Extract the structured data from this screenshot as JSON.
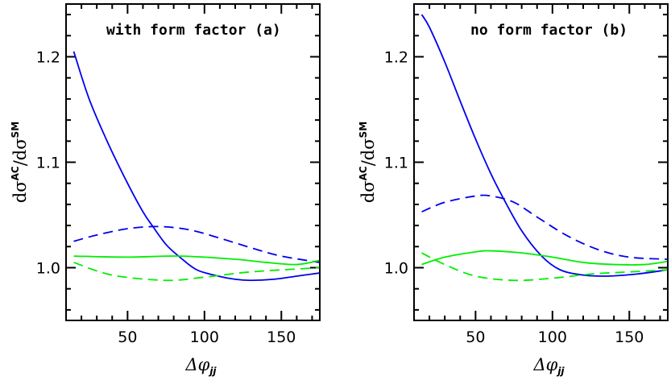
{
  "chart_data": [
    {
      "type": "line",
      "title": "with form factor (a)",
      "xlabel": "Δφ",
      "xlabel_sub": "jj",
      "ylabel": "dσ",
      "ylabel_sup1": "AC",
      "ylabel_mid": "/dσ",
      "ylabel_sup2": "SM",
      "xlim": [
        10,
        175
      ],
      "ylim": [
        0.95,
        1.25
      ],
      "xticks": [
        50,
        100,
        150
      ],
      "yticks": [
        1.0,
        1.1,
        1.2
      ],
      "xtick_labels": [
        "50",
        "100",
        "150"
      ],
      "ytick_labels": [
        "1.0",
        "1.1",
        "1.2"
      ],
      "grid": false,
      "series": [
        {
          "color": "#0000ee",
          "style": "solid",
          "x": [
            15,
            25,
            37,
            50,
            60,
            66,
            75,
            84,
            95,
            109,
            120,
            130,
            145,
            160,
            175
          ],
          "y": [
            1.205,
            1.16,
            1.119,
            1.08,
            1.053,
            1.04,
            1.022,
            1.01,
            0.998,
            0.992,
            0.989,
            0.988,
            0.989,
            0.992,
            0.995
          ]
        },
        {
          "color": "#0000ee",
          "style": "dashed",
          "x": [
            15,
            30,
            50,
            70,
            90,
            110,
            130,
            150,
            175
          ],
          "y": [
            1.025,
            1.031,
            1.037,
            1.039,
            1.036,
            1.028,
            1.019,
            1.011,
            1.005
          ]
        },
        {
          "color": "#00ee00",
          "style": "solid",
          "x": [
            15,
            50,
            85,
            120,
            140,
            160,
            175
          ],
          "y": [
            1.011,
            1.01,
            1.011,
            1.008,
            1.005,
            1.003,
            1.007
          ]
        },
        {
          "color": "#00ee00",
          "style": "dashed",
          "x": [
            15,
            40,
            75,
            100,
            130,
            175
          ],
          "y": [
            1.005,
            0.993,
            0.988,
            0.991,
            0.996,
            1.0
          ]
        }
      ]
    },
    {
      "type": "line",
      "title": "no form factor  (b)",
      "xlabel": "Δφ",
      "xlabel_sub": "jj",
      "ylabel": "dσ",
      "ylabel_sup1": "AC",
      "ylabel_mid": "/dσ",
      "ylabel_sup2": "SM",
      "xlim": [
        10,
        175
      ],
      "ylim": [
        0.95,
        1.25
      ],
      "xticks": [
        50,
        100,
        150
      ],
      "yticks": [
        1.0,
        1.1,
        1.2
      ],
      "xtick_labels": [
        "50",
        "100",
        "150"
      ],
      "ytick_labels": [
        "1.0",
        "1.1",
        "1.2"
      ],
      "grid": false,
      "series": [
        {
          "color": "#0000ee",
          "style": "solid",
          "x": [
            15,
            20,
            30,
            40,
            50,
            60,
            68,
            80,
            93,
            105,
            120,
            135,
            155,
            175
          ],
          "y": [
            1.24,
            1.228,
            1.195,
            1.158,
            1.122,
            1.089,
            1.066,
            1.035,
            1.011,
            0.998,
            0.993,
            0.992,
            0.994,
            0.998
          ]
        },
        {
          "color": "#0000ee",
          "style": "dashed",
          "x": [
            15,
            30,
            50,
            60,
            75,
            90,
            110,
            130,
            150,
            175
          ],
          "y": [
            1.053,
            1.062,
            1.068,
            1.068,
            1.062,
            1.048,
            1.03,
            1.017,
            1.01,
            1.008
          ]
        },
        {
          "color": "#00ee00",
          "style": "solid",
          "x": [
            15,
            30,
            50,
            60,
            80,
            100,
            120,
            140,
            160,
            175
          ],
          "y": [
            1.003,
            1.01,
            1.015,
            1.016,
            1.014,
            1.01,
            1.005,
            1.003,
            1.003,
            1.006
          ]
        },
        {
          "color": "#00ee00",
          "style": "dashed",
          "x": [
            15,
            30,
            50,
            75,
            100,
            125,
            150,
            175
          ],
          "y": [
            1.014,
            1.003,
            0.992,
            0.988,
            0.99,
            0.994,
            0.996,
            0.998
          ]
        }
      ]
    }
  ]
}
